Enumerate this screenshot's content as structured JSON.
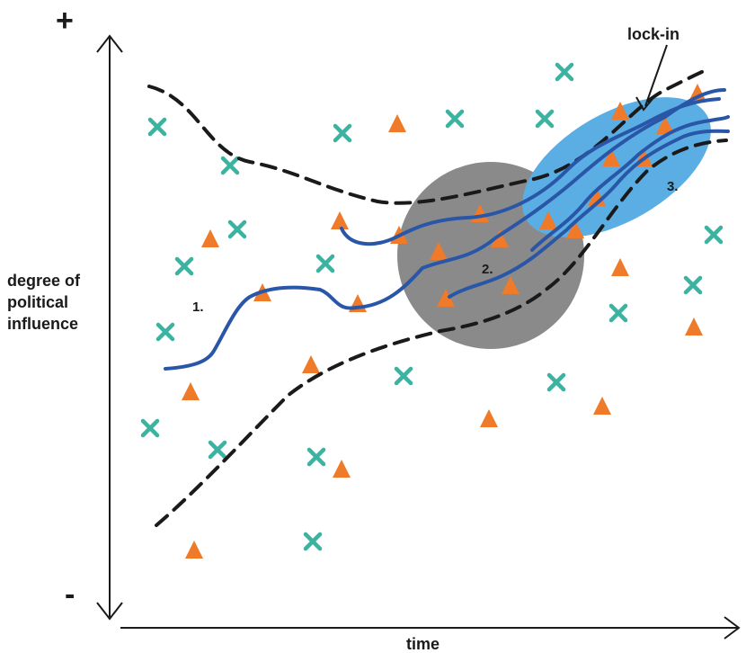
{
  "labels": {
    "plus": "+",
    "minus": "-",
    "y_axis_line1": "degree of",
    "y_axis_line2": "political",
    "y_axis_line3": "influence",
    "x_axis": "time",
    "lock_in": "lock-in",
    "stage1": "1.",
    "stage2": "2.",
    "stage3": "3."
  },
  "colors": {
    "marker_triangle": "#ee7a2a",
    "marker_cross": "#3bb3a0",
    "trajectory": "#2a56a8",
    "stage2_circle": "#8a8a8a",
    "lockin_ellipse": "#5aaee3",
    "axis": "#1a1a1a"
  }
}
